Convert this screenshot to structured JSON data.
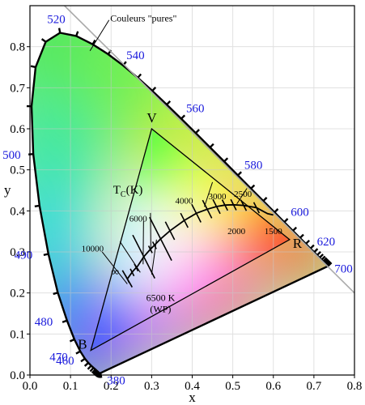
{
  "chart_data": {
    "type": "diagram",
    "xlabel": "x",
    "ylabel": "y",
    "xlim": [
      0,
      0.8
    ],
    "ylim": [
      0,
      0.9
    ],
    "xticks": [
      "0.0",
      "0.1",
      "0.2",
      "0.3",
      "0.4",
      "0.5",
      "0.6",
      "0.7",
      "0.8"
    ],
    "yticks": [
      "0.0",
      "0.1",
      "0.2",
      "0.3",
      "0.4",
      "0.5",
      "0.6",
      "0.7",
      "0.8"
    ],
    "locus_label": "Couleurs \"pures\"",
    "wavelength_labels": [
      {
        "text": "380",
        "x": 0.1741,
        "y": 0.005
      },
      {
        "text": "460",
        "x": 0.144,
        "y": 0.0297
      },
      {
        "text": "470",
        "x": 0.1241,
        "y": 0.0578
      },
      {
        "text": "480",
        "x": 0.0913,
        "y": 0.1327
      },
      {
        "text": "490",
        "x": 0.0454,
        "y": 0.295
      },
      {
        "text": "500",
        "x": 0.0082,
        "y": 0.5384
      },
      {
        "text": "520",
        "x": 0.0743,
        "y": 0.8338
      },
      {
        "text": "540",
        "x": 0.2296,
        "y": 0.7543
      },
      {
        "text": "560",
        "x": 0.3731,
        "y": 0.6245
      },
      {
        "text": "580",
        "x": 0.5125,
        "y": 0.4866
      },
      {
        "text": "600",
        "x": 0.627,
        "y": 0.3725
      },
      {
        "text": "620",
        "x": 0.6915,
        "y": 0.3083
      },
      {
        "text": "700",
        "x": 0.7347,
        "y": 0.2653
      }
    ],
    "primaries": [
      {
        "label": "R",
        "x": 0.64,
        "y": 0.33
      },
      {
        "label": "V",
        "x": 0.3,
        "y": 0.6
      },
      {
        "label": "B",
        "x": 0.15,
        "y": 0.06
      }
    ],
    "planckian_label": "T_C(K)",
    "planckian_labels": [
      "10000",
      "6000",
      "4000",
      "3000",
      "2500",
      "2000",
      "1500",
      "∞"
    ],
    "white_point": {
      "label": "6500 K",
      "sublabel": "(WP)",
      "x": 0.3127,
      "y": 0.329
    }
  },
  "colors": {
    "locus_stroke": "#000000",
    "wavelength_text": "#1a1adc",
    "grid": "#c8c8c8"
  }
}
